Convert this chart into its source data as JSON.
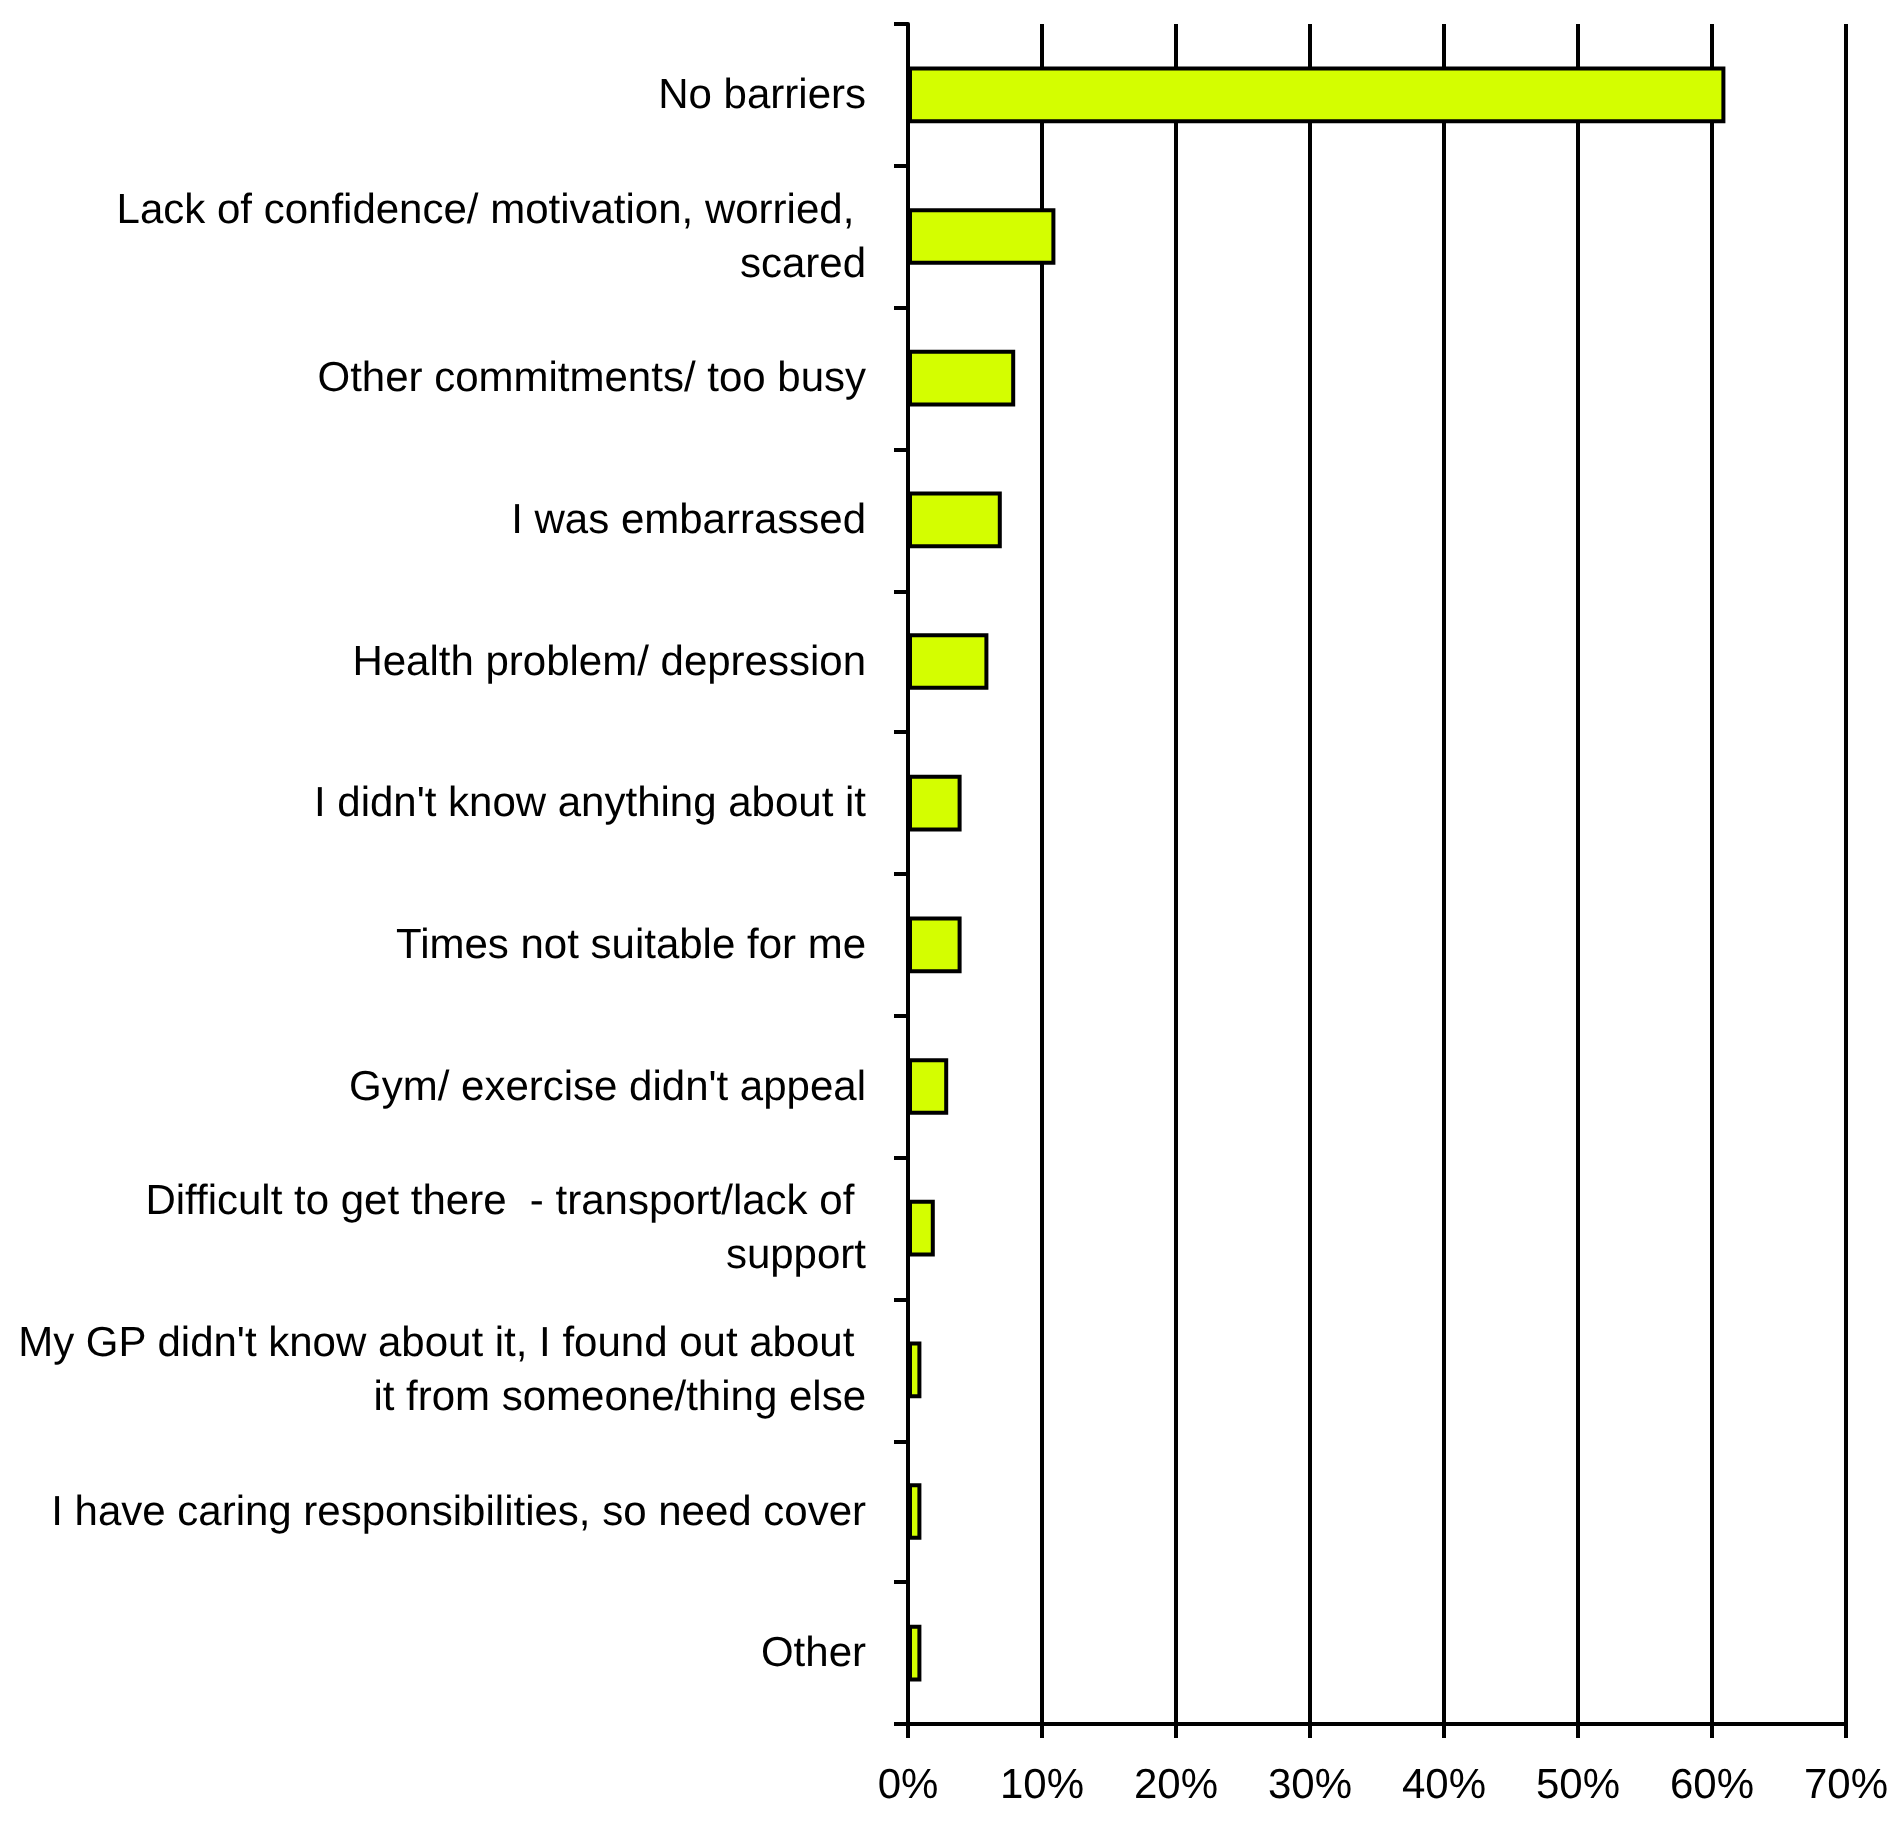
{
  "chart_data": {
    "type": "bar",
    "orientation": "horizontal",
    "categories": [
      "No barriers",
      "Lack of confidence/ motivation, worried, scared",
      "Other commitments/ too busy",
      "I was embarrassed",
      "Health problem/ depression",
      "I didn't know anything about it",
      "Times not suitable for me",
      "Gym/ exercise didn't appeal",
      "Difficult to get there  - transport/lack of support",
      "My GP didn't know about it, I found out about it from someone/thing else",
      "I have caring responsibilities, so need cover",
      "Other"
    ],
    "values": [
      61,
      11,
      8,
      7,
      6,
      4,
      4,
      3,
      2,
      1,
      1,
      1
    ],
    "color": "#d4fe00",
    "xlim": [
      0,
      70
    ],
    "xticks": [
      {
        "value": 0,
        "label": "0%"
      },
      {
        "value": 10,
        "label": "10%"
      },
      {
        "value": 20,
        "label": "20%"
      },
      {
        "value": 30,
        "label": "30%"
      },
      {
        "value": 40,
        "label": "40%"
      },
      {
        "value": 50,
        "label": "50%"
      },
      {
        "value": 60,
        "label": "60%"
      },
      {
        "value": 70,
        "label": "70%"
      }
    ],
    "grid": "x"
  }
}
